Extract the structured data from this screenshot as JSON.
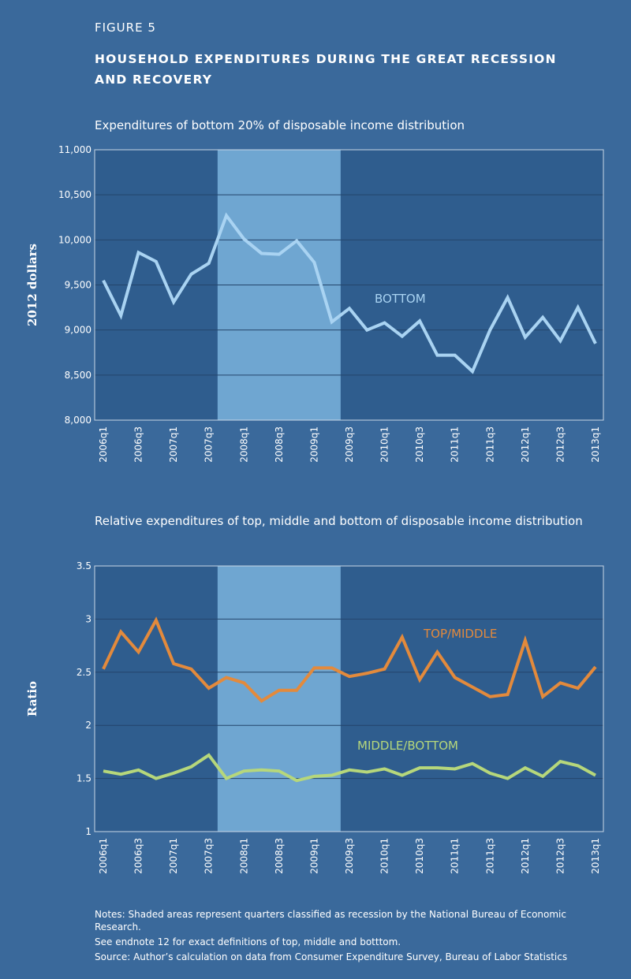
{
  "figure_label": "FIGURE 5",
  "title": "HOUSEHOLD EXPENDITURES DURING THE GREAT RECESSION AND RECOVERY",
  "notes": [
    "Notes: Shaded areas represent quarters classified as recession by the National Bureau of Economic Research.",
    "See endnote 12 for exact definitions of top, middle and botttom.",
    "Source: Author’s calculation on data from Consumer Expenditure Survey, Bureau of Labor Statistics"
  ],
  "chart_data": [
    {
      "type": "line",
      "title": "Expenditures of bottom 20% of disposable income distribution",
      "y_label": "2012 dollars",
      "categories": [
        "2006q1",
        null,
        "2006q3",
        null,
        "2007q1",
        null,
        "2007q3",
        null,
        "2008q1",
        null,
        "2008q3",
        null,
        "2009q1",
        null,
        "2009q3",
        null,
        "2010q1",
        null,
        "2010q3",
        null,
        "2011q1",
        null,
        "2011q3",
        null,
        "2012q1",
        null,
        "2012q3",
        null,
        "2013q1"
      ],
      "shade": [
        7,
        13
      ],
      "series": [
        {
          "name": "BOTTOM",
          "color": "#a9d3f2",
          "values": [
            9550,
            9160,
            9860,
            9760,
            9310,
            9620,
            9740,
            10270,
            10010,
            9850,
            9840,
            9990,
            9750,
            9090,
            9240,
            9000,
            9080,
            8930,
            9100,
            8720,
            8720,
            8540,
            9000,
            9360,
            8920,
            9140,
            8880,
            9250,
            8850
          ]
        }
      ],
      "ylim": [
        8000,
        11000
      ],
      "yticks": [
        {
          "value": 8000,
          "label": "8,000"
        },
        {
          "value": 8500,
          "label": "8,500"
        },
        {
          "value": 9000,
          "label": "9,000"
        },
        {
          "value": 9500,
          "label": "9,500"
        },
        {
          "value": 10000,
          "label": "10,000"
        },
        {
          "value": 10500,
          "label": "10,500"
        },
        {
          "value": 11000,
          "label": "11,000"
        }
      ],
      "grid": true
    },
    {
      "type": "line",
      "title": "Relative expenditures of top, middle and bottom of disposable income distribution",
      "y_label": "Ratio",
      "categories": [
        "2006q1",
        null,
        "2006q3",
        null,
        "2007q1",
        null,
        "2007q3",
        null,
        "2008q1",
        null,
        "2008q3",
        null,
        "2009q1",
        null,
        "2009q3",
        null,
        "2010q1",
        null,
        "2010q3",
        null,
        "2011q1",
        null,
        "2011q3",
        null,
        "2012q1",
        null,
        "2012q3",
        null,
        "2013q1"
      ],
      "shade": [
        7,
        13
      ],
      "series": [
        {
          "name": "TOP/MIDDLE",
          "color": "#e38a3c",
          "values": [
            2.53,
            2.88,
            2.69,
            2.99,
            2.58,
            2.53,
            2.35,
            2.45,
            2.4,
            2.23,
            2.33,
            2.33,
            2.54,
            2.54,
            2.46,
            2.49,
            2.53,
            2.83,
            2.43,
            2.69,
            2.45,
            2.36,
            2.27,
            2.29,
            2.8,
            2.27,
            2.4,
            2.35,
            2.55
          ]
        },
        {
          "name": "MIDDLE/BOTTOM",
          "color": "#b6d77b",
          "values": [
            1.57,
            1.54,
            1.58,
            1.5,
            1.55,
            1.61,
            1.72,
            1.5,
            1.57,
            1.58,
            1.57,
            1.48,
            1.52,
            1.53,
            1.58,
            1.56,
            1.59,
            1.53,
            1.6,
            1.6,
            1.59,
            1.64,
            1.55,
            1.5,
            1.6,
            1.52,
            1.66,
            1.62,
            1.53
          ]
        }
      ],
      "ylim": [
        1,
        3.5
      ],
      "yticks": [
        1,
        1.5,
        2,
        2.5,
        3,
        3.5
      ],
      "grid": true
    }
  ]
}
